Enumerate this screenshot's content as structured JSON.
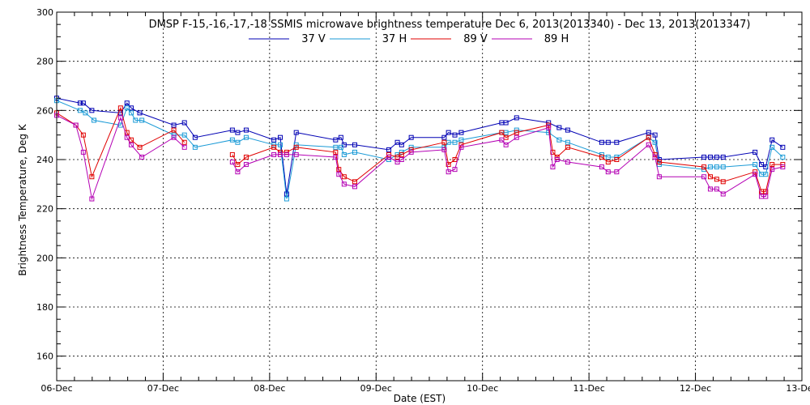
{
  "chart_data": {
    "type": "line",
    "title": "DMSP F-15,-16,-17,-18 SSMIS microwave brightness temperature Dec  6, 2013(2013340) - Dec 13, 2013(2013347)",
    "xlabel": "Date (EST)",
    "ylabel": "Brightness Temperature, Deg K",
    "xlim": [
      0,
      7
    ],
    "ylim": [
      150,
      300
    ],
    "grid": true,
    "legend_position": "top",
    "x_ticks": [
      {
        "value": 0,
        "label": "06-Dec"
      },
      {
        "value": 1,
        "label": "07-Dec"
      },
      {
        "value": 2,
        "label": "08-Dec"
      },
      {
        "value": 3,
        "label": "09-Dec"
      },
      {
        "value": 4,
        "label": "10-Dec"
      },
      {
        "value": 5,
        "label": "11-Dec"
      },
      {
        "value": 6,
        "label": "12-Dec"
      },
      {
        "value": 7,
        "label": "13-Dec"
      }
    ],
    "y_ticks": [
      {
        "value": 160,
        "label": "160"
      },
      {
        "value": 180,
        "label": "180"
      },
      {
        "value": 200,
        "label": "200"
      },
      {
        "value": 220,
        "label": "220"
      },
      {
        "value": 240,
        "label": "240"
      },
      {
        "value": 260,
        "label": "260"
      },
      {
        "value": 280,
        "label": "280"
      },
      {
        "value": 300,
        "label": "300"
      }
    ],
    "series": [
      {
        "name": "37 V",
        "color": "#0000b4",
        "segments": [
          [
            [
              0.0,
              265
            ],
            [
              0.22,
              263
            ],
            [
              0.25,
              263
            ],
            [
              0.33,
              260
            ],
            [
              0.6,
              259
            ],
            [
              0.66,
              263
            ],
            [
              0.7,
              261
            ],
            [
              0.78,
              259
            ],
            [
              1.1,
              254
            ],
            [
              1.2,
              255
            ],
            [
              1.3,
              249
            ],
            [
              1.65,
              252
            ],
            [
              1.7,
              251
            ],
            [
              1.78,
              252
            ],
            [
              2.04,
              248
            ],
            [
              2.1,
              249
            ],
            [
              2.16,
              226
            ],
            [
              2.25,
              251
            ],
            [
              2.62,
              248
            ],
            [
              2.67,
              249
            ],
            [
              2.7,
              246
            ],
            [
              2.8,
              246
            ],
            [
              3.12,
              244
            ],
            [
              3.2,
              247
            ],
            [
              3.24,
              246
            ],
            [
              3.33,
              249
            ],
            [
              3.64,
              249
            ],
            [
              3.68,
              251
            ],
            [
              3.74,
              250
            ],
            [
              3.8,
              251
            ],
            [
              4.18,
              255
            ],
            [
              4.22,
              255
            ],
            [
              4.32,
              257
            ],
            [
              4.62,
              255
            ],
            [
              4.72,
              253
            ],
            [
              4.8,
              252
            ],
            [
              5.12,
              247
            ],
            [
              5.18,
              247
            ],
            [
              5.26,
              247
            ],
            [
              5.56,
              251
            ],
            [
              5.62,
              250
            ],
            [
              5.66,
              240
            ],
            [
              6.08,
              241
            ],
            [
              6.14,
              241
            ],
            [
              6.2,
              241
            ],
            [
              6.26,
              241
            ],
            [
              6.56,
              243
            ],
            [
              6.62,
              238
            ],
            [
              6.66,
              237
            ],
            [
              6.72,
              248
            ],
            [
              6.82,
              245
            ]
          ]
        ]
      },
      {
        "name": "37 H",
        "color": "#1a9ad6",
        "segments": [
          [
            [
              0.0,
              264
            ],
            [
              0.22,
              260
            ],
            [
              0.27,
              259
            ],
            [
              0.35,
              256
            ],
            [
              0.6,
              254
            ],
            [
              0.66,
              261
            ],
            [
              0.7,
              259
            ],
            [
              0.74,
              256
            ],
            [
              0.8,
              256
            ],
            [
              1.1,
              250
            ],
            [
              1.2,
              250
            ],
            [
              1.3,
              245
            ],
            [
              1.65,
              248
            ],
            [
              1.7,
              247
            ],
            [
              1.78,
              249
            ],
            [
              2.04,
              246
            ],
            [
              2.1,
              246
            ],
            [
              2.16,
              224
            ],
            [
              2.25,
              246
            ],
            [
              2.62,
              245
            ],
            [
              2.67,
              245
            ],
            [
              2.7,
              242
            ],
            [
              2.8,
              243
            ],
            [
              3.12,
              240
            ],
            [
              3.2,
              242
            ],
            [
              3.24,
              243
            ],
            [
              3.33,
              245
            ],
            [
              3.64,
              245
            ],
            [
              3.68,
              247
            ],
            [
              3.74,
              247
            ],
            [
              3.8,
              248
            ],
            [
              4.18,
              251
            ],
            [
              4.22,
              251
            ],
            [
              4.32,
              252
            ],
            [
              4.62,
              251
            ],
            [
              4.72,
              248
            ],
            [
              4.8,
              247
            ],
            [
              5.12,
              242
            ],
            [
              5.18,
              241
            ],
            [
              5.26,
              241
            ],
            [
              5.56,
              249
            ],
            [
              5.62,
              247
            ],
            [
              5.66,
              238
            ],
            [
              6.08,
              236
            ],
            [
              6.14,
              237
            ],
            [
              6.2,
              237
            ],
            [
              6.26,
              237
            ],
            [
              6.56,
              238
            ],
            [
              6.62,
              234
            ],
            [
              6.66,
              234
            ],
            [
              6.72,
              245
            ],
            [
              6.82,
              241
            ]
          ]
        ]
      },
      {
        "name": "89 V",
        "color": "#e00000",
        "segments": [
          [
            [
              0.0,
              259
            ],
            [
              0.18,
              254
            ],
            [
              0.25,
              250
            ],
            [
              0.33,
              233
            ],
            [
              0.6,
              261
            ],
            [
              0.66,
              251
            ],
            [
              0.7,
              248
            ],
            [
              0.78,
              245
            ],
            [
              1.1,
              252
            ],
            [
              1.2,
              247
            ]
          ],
          [
            [
              1.65,
              242
            ],
            [
              1.7,
              238
            ],
            [
              1.78,
              241
            ],
            [
              2.04,
              245
            ],
            [
              2.1,
              243
            ],
            [
              2.16,
              243
            ],
            [
              2.25,
              245
            ],
            [
              2.62,
              243
            ],
            [
              2.65,
              236
            ],
            [
              2.7,
              233
            ],
            [
              2.8,
              231
            ],
            [
              3.12,
              242
            ],
            [
              3.2,
              241
            ],
            [
              3.24,
              242
            ],
            [
              3.33,
              244
            ],
            [
              3.64,
              247
            ],
            [
              3.68,
              238
            ],
            [
              3.74,
              240
            ],
            [
              3.8,
              246
            ],
            [
              4.18,
              251
            ],
            [
              4.22,
              249
            ],
            [
              4.32,
              251
            ],
            [
              4.62,
              254
            ],
            [
              4.66,
              243
            ],
            [
              4.7,
              241
            ],
            [
              4.8,
              245
            ],
            [
              5.12,
              241
            ],
            [
              5.18,
              239
            ],
            [
              5.26,
              240
            ],
            [
              5.56,
              249
            ],
            [
              5.62,
              242
            ],
            [
              5.66,
              239
            ],
            [
              6.08,
              237
            ],
            [
              6.14,
              233
            ],
            [
              6.2,
              232
            ],
            [
              6.26,
              231
            ],
            [
              6.56,
              235
            ],
            [
              6.62,
              227
            ],
            [
              6.66,
              227
            ],
            [
              6.72,
              238
            ],
            [
              6.82,
              238
            ]
          ]
        ]
      },
      {
        "name": "89 H",
        "color": "#b400b4",
        "segments": [
          [
            [
              0.0,
              258
            ],
            [
              0.18,
              254
            ],
            [
              0.25,
              243
            ],
            [
              0.33,
              224
            ],
            [
              0.6,
              257
            ],
            [
              0.66,
              249
            ],
            [
              0.7,
              246
            ],
            [
              0.8,
              241
            ],
            [
              1.1,
              249
            ],
            [
              1.2,
              245
            ]
          ],
          [
            [
              1.65,
              239
            ],
            [
              1.7,
              235
            ],
            [
              1.78,
              238
            ],
            [
              2.04,
              242
            ],
            [
              2.1,
              242
            ],
            [
              2.16,
              242
            ],
            [
              2.25,
              242
            ],
            [
              2.62,
              241
            ],
            [
              2.65,
              234
            ],
            [
              2.7,
              230
            ],
            [
              2.8,
              229
            ],
            [
              3.12,
              241
            ],
            [
              3.2,
              239
            ],
            [
              3.24,
              240
            ],
            [
              3.33,
              243
            ],
            [
              3.64,
              244
            ],
            [
              3.68,
              235
            ],
            [
              3.74,
              236
            ],
            [
              3.8,
              245
            ],
            [
              4.18,
              248
            ],
            [
              4.22,
              246
            ],
            [
              4.32,
              249
            ],
            [
              4.62,
              253
            ],
            [
              4.66,
              237
            ],
            [
              4.7,
              240
            ],
            [
              4.8,
              239
            ],
            [
              5.12,
              237
            ],
            [
              5.18,
              235
            ],
            [
              5.26,
              235
            ],
            [
              5.56,
              246
            ],
            [
              5.62,
              241
            ],
            [
              5.66,
              233
            ],
            [
              6.08,
              233
            ],
            [
              6.14,
              228
            ],
            [
              6.2,
              228
            ],
            [
              6.26,
              226
            ],
            [
              6.56,
              234
            ],
            [
              6.62,
              225
            ],
            [
              6.66,
              225
            ],
            [
              6.72,
              236
            ],
            [
              6.82,
              237
            ]
          ]
        ]
      }
    ]
  }
}
